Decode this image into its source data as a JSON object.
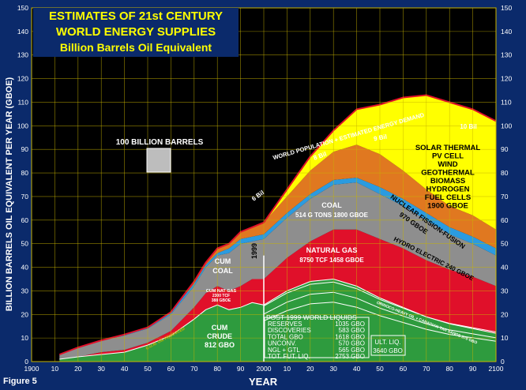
{
  "figure_label": "Figure 5",
  "title_lines": [
    "ESTIMATES OF 21st CENTURY",
    "WORLD ENERGY SUPPLIES",
    "Billion Barrels Oil Equivalent"
  ],
  "chart_data": {
    "type": "area",
    "xlabel": "YEAR",
    "ylabel": "BILLION BARRELS OIL EQUIVALENT PER YEAR (GBOE)",
    "x_ticks": [
      "1900",
      "10",
      "20",
      "30",
      "40",
      "50",
      "60",
      "70",
      "80",
      "90",
      "2000",
      "10",
      "20",
      "30",
      "40",
      "50",
      "60",
      "70",
      "80",
      "90",
      "2100"
    ],
    "y_ticks": [
      0,
      10,
      20,
      30,
      40,
      50,
      60,
      70,
      80,
      90,
      100,
      110,
      120,
      130,
      140,
      150
    ],
    "xlim": [
      1900,
      2100
    ],
    "ylim": [
      0,
      150
    ],
    "grid": true,
    "x": [
      1912,
      1920,
      1930,
      1940,
      1950,
      1960,
      1970,
      1975,
      1980,
      1985,
      1990,
      1995,
      2000,
      2010,
      2020,
      2030,
      2040,
      2050,
      2060,
      2070,
      2080,
      2090,
      2100
    ],
    "series": [
      {
        "name": "CUM CRUDE 812 GBO",
        "color": "#2e9b3e",
        "values": [
          1,
          2,
          3,
          4,
          7,
          11,
          18,
          22,
          24,
          22,
          23,
          25,
          24,
          30,
          34,
          35,
          32,
          27,
          23,
          19,
          16,
          14,
          12
        ]
      },
      {
        "name": "CUM NAT GAS 2300 TCF 388 GBOE",
        "color": "#e0102a",
        "values": [
          0,
          0,
          1,
          1,
          1,
          2,
          5,
          7,
          8,
          8,
          9,
          10,
          11,
          14,
          17,
          21,
          24,
          25,
          25,
          24,
          23,
          22,
          20
        ]
      },
      {
        "name": "CUM COAL / COAL 514 G TONS 1800 GBOE",
        "color": "#8e8e8e",
        "values": [
          2,
          4,
          5,
          6,
          6,
          7,
          9,
          11,
          13,
          16,
          18,
          16,
          17,
          17,
          18,
          19,
          20,
          19,
          18,
          17,
          15,
          14,
          13
        ]
      },
      {
        "name": "HYDRO ELECTRIC 240 GBOE",
        "color": "#2b9be0",
        "values": [
          0,
          0,
          0,
          0.5,
          0.5,
          1,
          1,
          1,
          1,
          2,
          2,
          2,
          2,
          2,
          2,
          2,
          2,
          3,
          3,
          3,
          3,
          3,
          3
        ]
      },
      {
        "name": "NUCLEAR FISSION-FUSION 970 GBOE",
        "color": "#e07820",
        "values": [
          0,
          0,
          0,
          0,
          0,
          0,
          1,
          1,
          2,
          2,
          3,
          4,
          5,
          7,
          10,
          12,
          14,
          14,
          12,
          10,
          9,
          9,
          8
        ]
      },
      {
        "name": "SOLAR THERMAL PV CELL WIND GEOTHERMAL BIOMASS HYDROGEN FUEL CELLS 1900 GBOE",
        "color": "#ffff00",
        "values": [
          0,
          0,
          0,
          0,
          0,
          0,
          0,
          0,
          0,
          0,
          0,
          0,
          0,
          3,
          6,
          9,
          15,
          21,
          31,
          40,
          44,
          45,
          46
        ]
      }
    ],
    "labels": {
      "hundred_billion": "100 BILLION BARRELS",
      "year_1999": "1999",
      "cum_coal": [
        "CUM",
        "COAL"
      ],
      "cum_natgas": [
        "CUM NAT GAS",
        "2300 TCF",
        "388 GBOE"
      ],
      "cum_crude": [
        "CUM",
        "CRUDE",
        "812 GBO"
      ],
      "coal": [
        "COAL",
        "514 G TONS    1800 GBOE"
      ],
      "natural_gas": [
        "NATURAL GAS",
        "8750 TCF   1458 GBOE"
      ],
      "renewables": [
        "SOLAR THERMAL",
        "PV CELL",
        "WIND",
        "GEOTHERMAL",
        "BIOMASS",
        "HYDROGEN",
        "FUEL CELLS",
        "1900 GBOE"
      ],
      "nuclear": [
        "NUCLEAR FISSION-FUSION",
        "970 GBOE"
      ],
      "hydro": "HYDRO ELECTRIC   240 GBOE",
      "demand_curve": "WORLD POPULATION + ESTIMATED ENERGY DEMAND",
      "population": [
        "6 Bil",
        "8 Bil",
        "9 Bil",
        "10 Bil"
      ],
      "unconv_curve": "ORINOCO-HEAVY OIL + CANADIAN TAR SANDS  570 GBO",
      "cum_curve": "C.U.M.  OIL PRODUCED",
      "table_title": "POST 1999 WORLD LIQUIDS",
      "table_rows": [
        [
          "RESERVES",
          "1035 GBO"
        ],
        [
          "DISCOVERIES",
          "583 GBO"
        ],
        [
          "TOTAL GBO",
          "1618 GBO"
        ],
        [
          "UNCONV.",
          "570 GBO"
        ],
        [
          "NGL + GTL",
          "565 GBO"
        ],
        [
          "TOT. FUT. LIQ.",
          "2753 GBO"
        ]
      ],
      "ult_liq": [
        "ULT. LIQ.",
        "3640 GBO"
      ]
    }
  }
}
